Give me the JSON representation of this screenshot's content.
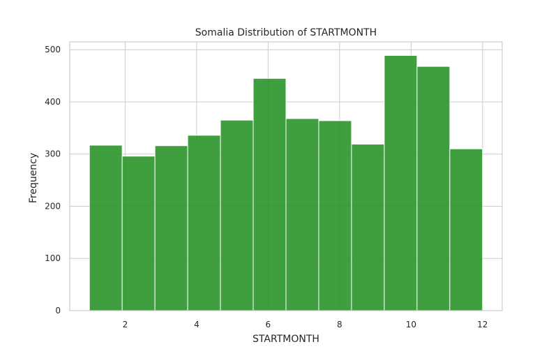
{
  "chart_data": {
    "type": "bar",
    "title": "Somalia Distribution of STARTMONTH",
    "xlabel": "STARTMONTH",
    "ylabel": "Frequency",
    "bin_start": 1,
    "bin_width": 0.9167,
    "values": [
      317,
      296,
      316,
      336,
      365,
      445,
      368,
      364,
      319,
      489,
      468,
      310
    ],
    "xlim": [
      0.45,
      12.55
    ],
    "ylim": [
      0,
      515
    ],
    "xticks": [
      2,
      4,
      6,
      8,
      10,
      12
    ],
    "yticks": [
      0,
      100,
      200,
      300,
      400,
      500
    ],
    "bar_color": "#2a9428",
    "grid": true,
    "legend": "none"
  }
}
